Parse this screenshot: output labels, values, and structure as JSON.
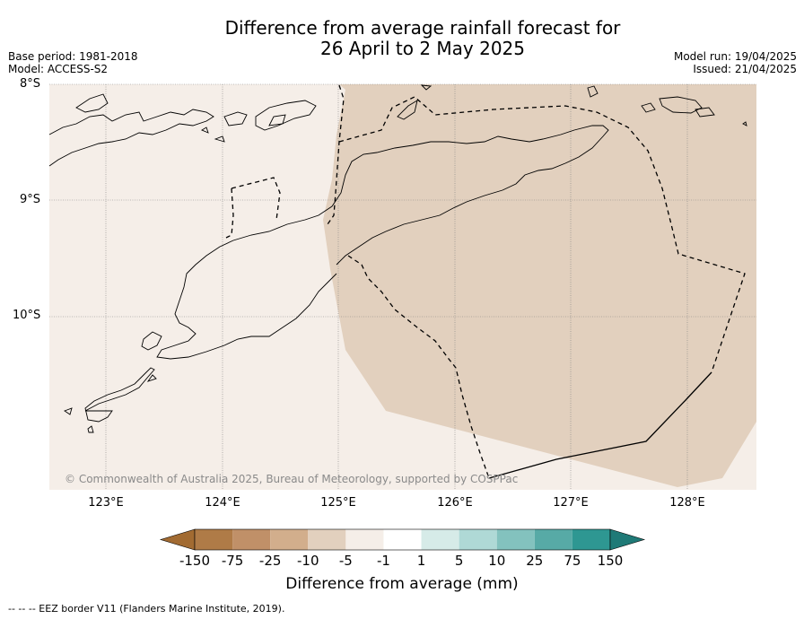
{
  "title_line1": "Difference from average rainfall forecast for",
  "title_line2": "26 April to 2 May 2025",
  "meta": {
    "base_period": "Base period: 1981-2018",
    "model": "Model: ACCESS-S2",
    "model_run": "Model run: 19/04/2025",
    "issued": "Issued: 21/04/2025"
  },
  "latitude_labels": [
    "8°S",
    "9°S",
    "10°S"
  ],
  "longitude_labels": [
    "123°E",
    "124°E",
    "125°E",
    "126°E",
    "127°E",
    "128°E"
  ],
  "credit": "© Commonwealth of Australia 2025, Bureau of Meteorology, supported by COSPPac",
  "colorbar": {
    "ticks": [
      "-150",
      "-75",
      "-25",
      "-10",
      "-5",
      "-1",
      "1",
      "5",
      "10",
      "25",
      "75",
      "150"
    ],
    "colors": [
      "#a26b32",
      "#af7b47",
      "#c09068",
      "#d2ae8c",
      "#e2d0be",
      "#f5eee8",
      "#ffffff",
      "#d6ebe8",
      "#afd9d6",
      "#83c2be",
      "#57aaa6",
      "#2e9792",
      "#1f7a77"
    ],
    "title": "Difference from average (mm)"
  },
  "legend_note": "--  --  -- EEZ border V11 (Flanders Marine Institute, 2019).",
  "colors": {
    "light_category": "#f5eee8",
    "dry_category": "#e2d0be",
    "grid": "#808080"
  }
}
